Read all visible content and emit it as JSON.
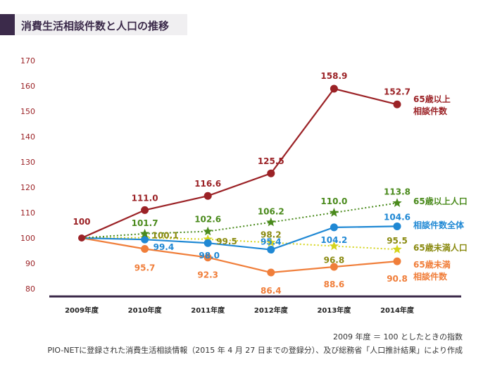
{
  "title": "消費生活相談件数と人口の推移",
  "footnote1": "2009 年度 ＝ 100 としたときの指数",
  "footnote2": "PIO-NETに登録された消費生活相談情報（2015 年 4 月 27 日までの登録分）、及び総務省「人口推計結果」により作成",
  "chart_data": {
    "type": "line",
    "categories": [
      "2009年度",
      "2010年度",
      "2011年度",
      "2012年度",
      "2013年度",
      "2014年度"
    ],
    "ylim": [
      80,
      170
    ],
    "yticks": [
      80,
      90,
      100,
      110,
      120,
      130,
      140,
      150,
      160,
      170
    ],
    "grid": false,
    "base_label": "100",
    "series": [
      {
        "name": "65歳以上\n相談件数",
        "values": [
          100,
          111.0,
          116.6,
          125.5,
          158.9,
          152.7
        ],
        "labels": [
          "",
          "111.0",
          "116.6",
          "125.5",
          "158.9",
          "152.7"
        ],
        "color": "#9b2226",
        "style": "solid",
        "marker": "circle"
      },
      {
        "name": "65歳以上人口",
        "values": [
          100,
          101.7,
          102.6,
          106.2,
          110.0,
          113.8
        ],
        "labels": [
          "",
          "101.7",
          "102.6",
          "106.2",
          "110.0",
          "113.8"
        ],
        "color": "#4a8a1c",
        "style": "dotted",
        "marker": "star"
      },
      {
        "name": "相談件数全体",
        "values": [
          100,
          99.4,
          98.0,
          95.4,
          104.2,
          104.6
        ],
        "labels": [
          "",
          "99.4",
          "98.0",
          "95.4",
          "104.2",
          "104.6"
        ],
        "color": "#1f88d4",
        "style": "solid",
        "marker": "circle"
      },
      {
        "name": "65歳未満人口",
        "values": [
          100,
          100.1,
          99.5,
          98.2,
          96.8,
          95.5
        ],
        "labels": [
          "",
          "100.1",
          "99.5",
          "98.2",
          "96.8",
          "95.5"
        ],
        "color": "#d4d41c",
        "style": "dotted",
        "marker": "star"
      },
      {
        "name": "65歳未満\n相談件数",
        "values": [
          100,
          95.7,
          92.3,
          86.4,
          88.6,
          90.8
        ],
        "labels": [
          "",
          "95.7",
          "92.3",
          "86.4",
          "88.6",
          "90.8"
        ],
        "color": "#f07e3a",
        "style": "solid",
        "marker": "circle"
      }
    ]
  },
  "colors": {
    "yaxis_text": "#9b2226",
    "label_olive": "#8a8a10",
    "axis": "#3b2a4a"
  }
}
